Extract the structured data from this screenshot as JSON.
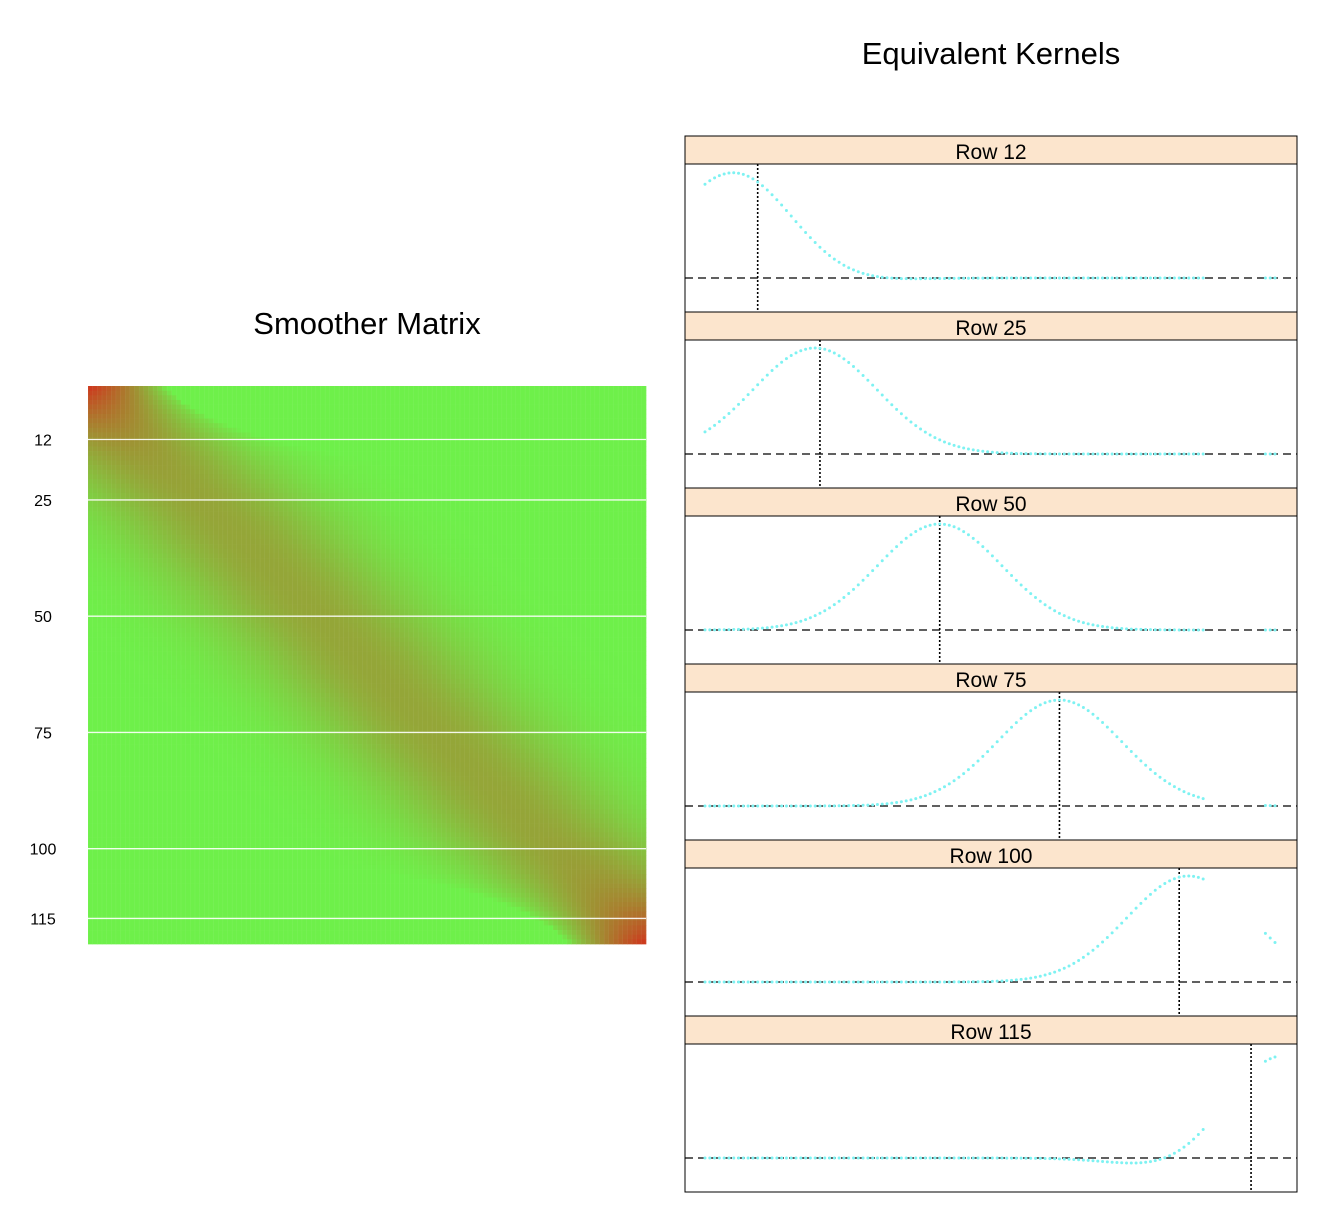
{
  "chart_data": [
    {
      "type": "heatmap",
      "title": "Smoother Matrix",
      "n": 120,
      "highlight_rows": [
        12,
        25,
        50,
        75,
        100,
        115
      ],
      "row_tick_labels": [
        "12",
        "25",
        "50",
        "75",
        "100",
        "115"
      ],
      "colors": {
        "low": "#6ef04a",
        "high": "#cc3b1e",
        "grid_line": "#ffffff"
      }
    },
    {
      "type": "scatter",
      "title": "Equivalent Kernels",
      "panel_strip_color": "#fce5cd",
      "point_color": "#7ef2f2",
      "reference_lines": {
        "horizontal": "zero weight (dashed)",
        "vertical": "target point (dotted)"
      },
      "panels": [
        {
          "label": "Row 12",
          "target": 12
        },
        {
          "label": "Row 25",
          "target": 25
        },
        {
          "label": "Row 50",
          "target": 50
        },
        {
          "label": "Row 75",
          "target": 75
        },
        {
          "label": "Row 100",
          "target": 100
        },
        {
          "label": "Row 115",
          "target": 115
        }
      ]
    }
  ]
}
